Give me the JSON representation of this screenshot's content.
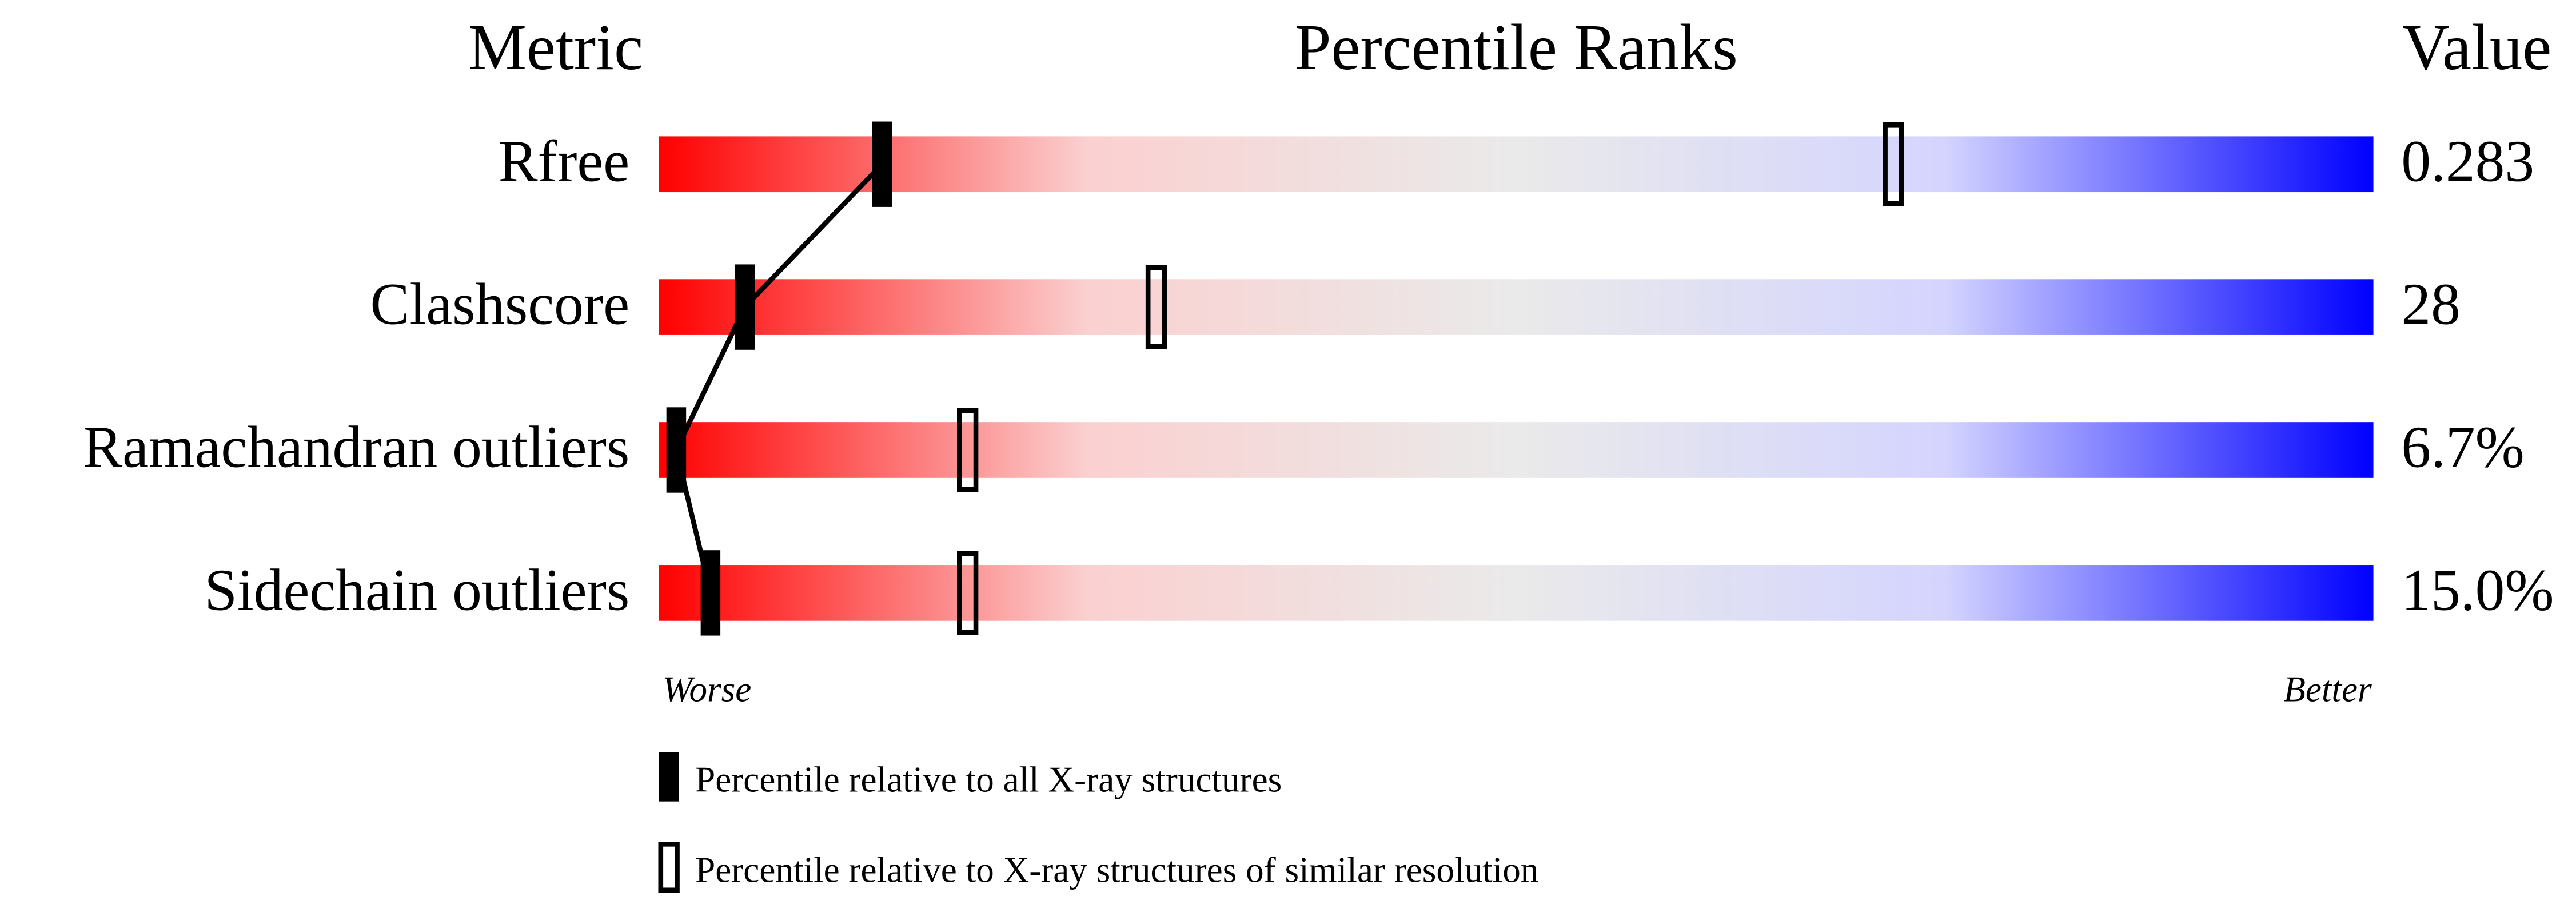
{
  "chart_data": {
    "type": "percentile-slider",
    "headers": {
      "metric": "Metric",
      "ranks": "Percentile Ranks",
      "value": "Value"
    },
    "categories": [
      "Rfree",
      "Clashscore",
      "Ramachandran outliers",
      "Sidechain outliers"
    ],
    "metric_values": [
      "0.283",
      "28",
      "6.7%",
      "15.0%"
    ],
    "xlim": [
      0,
      100
    ],
    "axis_labels": {
      "low": "Worse",
      "high": "Better"
    },
    "gradient": [
      "#ff0000",
      "#fbd0d0",
      "#eaeaea",
      "#d4d4ff",
      "#0000ff"
    ],
    "series": [
      {
        "name": "Percentile relative to all X-ray structures",
        "color": "#000000",
        "filled": true,
        "connected": true,
        "values": [
          13,
          5,
          1,
          3
        ]
      },
      {
        "name": "Percentile relative to X-ray structures of similar resolution",
        "color": "#000000",
        "filled": false,
        "connected": false,
        "values": [
          72,
          29,
          18,
          18
        ]
      }
    ]
  }
}
